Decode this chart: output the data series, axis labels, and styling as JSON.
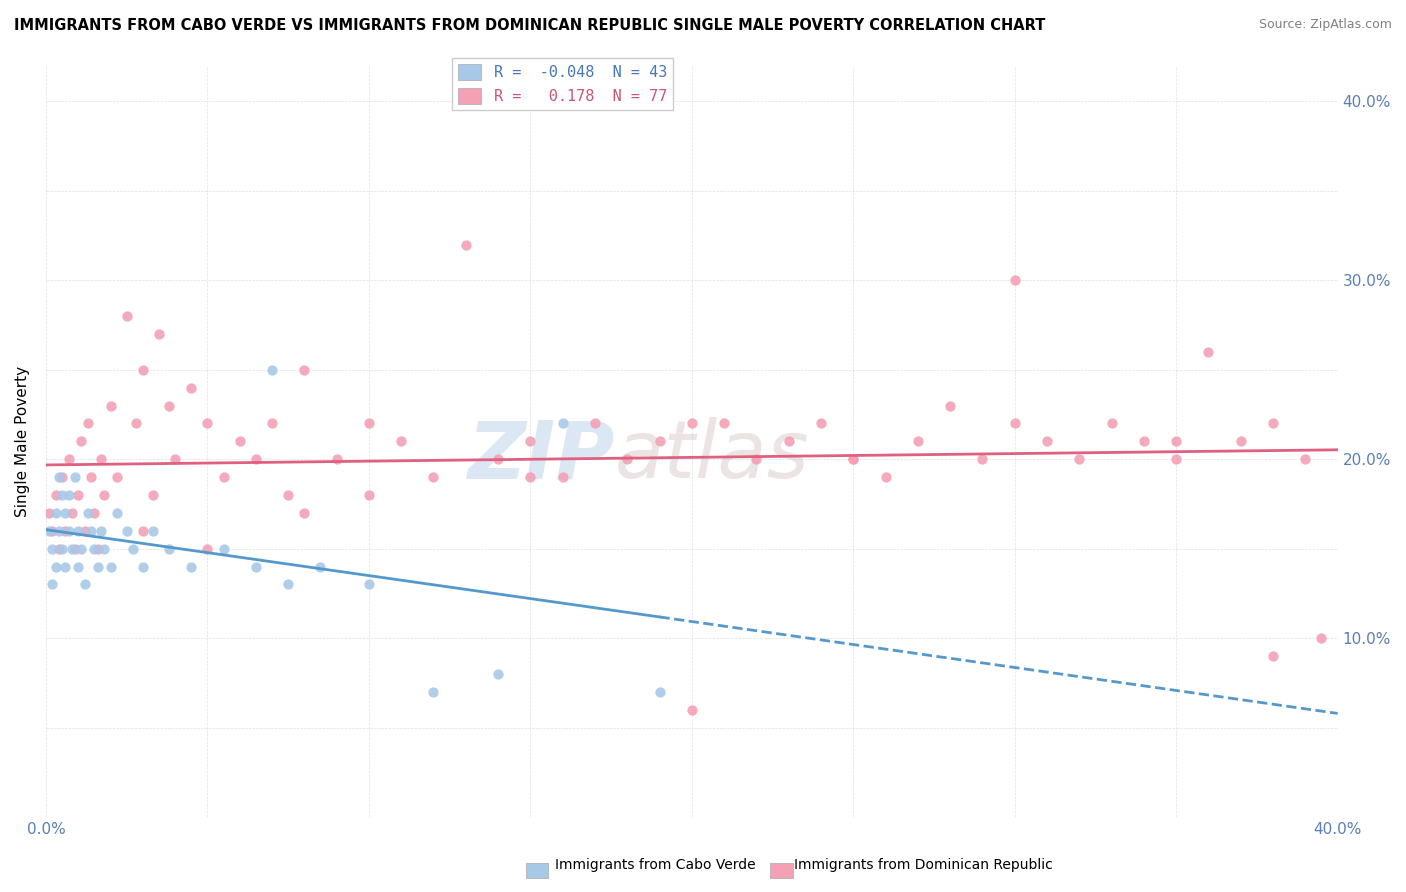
{
  "title": "IMMIGRANTS FROM CABO VERDE VS IMMIGRANTS FROM DOMINICAN REPUBLIC SINGLE MALE POVERTY CORRELATION CHART",
  "source": "Source: ZipAtlas.com",
  "ylabel": "Single Male Poverty",
  "xlim": [
    0.0,
    0.4
  ],
  "ylim": [
    0.0,
    0.42
  ],
  "xtick_positions": [
    0.0,
    0.05,
    0.1,
    0.15,
    0.2,
    0.25,
    0.3,
    0.35,
    0.4
  ],
  "xtick_labels": [
    "0.0%",
    "",
    "",
    "",
    "",
    "",
    "",
    "",
    "40.0%"
  ],
  "ytick_positions": [
    0.0,
    0.05,
    0.1,
    0.15,
    0.2,
    0.25,
    0.3,
    0.35,
    0.4
  ],
  "ytick_labels_right": [
    "",
    "",
    "10.0%",
    "",
    "20.0%",
    "",
    "30.0%",
    "",
    "40.0%"
  ],
  "cabo_verde_R": -0.048,
  "cabo_verde_N": 43,
  "dominican_R": 0.178,
  "dominican_N": 77,
  "cabo_verde_color": "#a8c8e8",
  "dominican_color": "#f4a0b5",
  "cabo_verde_line_color": "#5599cc",
  "dominican_line_color": "#e06080",
  "watermark_zip": "ZIP",
  "watermark_atlas": "atlas",
  "cabo_verde_x": [
    0.001,
    0.002,
    0.002,
    0.003,
    0.003,
    0.004,
    0.004,
    0.005,
    0.005,
    0.006,
    0.006,
    0.007,
    0.007,
    0.008,
    0.009,
    0.01,
    0.01,
    0.011,
    0.012,
    0.013,
    0.014,
    0.015,
    0.016,
    0.017,
    0.018,
    0.02,
    0.022,
    0.025,
    0.027,
    0.03,
    0.033,
    0.038,
    0.045,
    0.055,
    0.065,
    0.075,
    0.085,
    0.1,
    0.12,
    0.14,
    0.07,
    0.16,
    0.19
  ],
  "cabo_verde_y": [
    0.16,
    0.13,
    0.15,
    0.17,
    0.14,
    0.19,
    0.16,
    0.15,
    0.18,
    0.14,
    0.17,
    0.16,
    0.18,
    0.15,
    0.19,
    0.16,
    0.14,
    0.15,
    0.13,
    0.17,
    0.16,
    0.15,
    0.14,
    0.16,
    0.15,
    0.14,
    0.17,
    0.16,
    0.15,
    0.14,
    0.16,
    0.15,
    0.14,
    0.15,
    0.14,
    0.13,
    0.14,
    0.13,
    0.07,
    0.08,
    0.25,
    0.22,
    0.07
  ],
  "dominican_x": [
    0.001,
    0.002,
    0.003,
    0.004,
    0.005,
    0.006,
    0.007,
    0.008,
    0.009,
    0.01,
    0.011,
    0.012,
    0.013,
    0.014,
    0.015,
    0.016,
    0.017,
    0.018,
    0.02,
    0.022,
    0.025,
    0.028,
    0.03,
    0.033,
    0.035,
    0.038,
    0.04,
    0.045,
    0.05,
    0.055,
    0.06,
    0.065,
    0.07,
    0.075,
    0.08,
    0.09,
    0.1,
    0.11,
    0.12,
    0.13,
    0.14,
    0.15,
    0.16,
    0.17,
    0.18,
    0.19,
    0.2,
    0.21,
    0.22,
    0.23,
    0.24,
    0.25,
    0.26,
    0.27,
    0.28,
    0.29,
    0.3,
    0.31,
    0.32,
    0.33,
    0.34,
    0.35,
    0.36,
    0.37,
    0.38,
    0.39,
    0.395,
    0.03,
    0.05,
    0.08,
    0.1,
    0.15,
    0.2,
    0.25,
    0.3,
    0.35,
    0.38
  ],
  "dominican_y": [
    0.17,
    0.16,
    0.18,
    0.15,
    0.19,
    0.16,
    0.2,
    0.17,
    0.15,
    0.18,
    0.21,
    0.16,
    0.22,
    0.19,
    0.17,
    0.15,
    0.2,
    0.18,
    0.23,
    0.19,
    0.28,
    0.22,
    0.25,
    0.18,
    0.27,
    0.23,
    0.2,
    0.24,
    0.22,
    0.19,
    0.21,
    0.2,
    0.22,
    0.18,
    0.25,
    0.2,
    0.22,
    0.21,
    0.19,
    0.32,
    0.2,
    0.21,
    0.19,
    0.22,
    0.2,
    0.21,
    0.06,
    0.22,
    0.2,
    0.21,
    0.22,
    0.2,
    0.19,
    0.21,
    0.23,
    0.2,
    0.3,
    0.21,
    0.2,
    0.22,
    0.21,
    0.2,
    0.26,
    0.21,
    0.22,
    0.2,
    0.1,
    0.16,
    0.15,
    0.17,
    0.18,
    0.19,
    0.22,
    0.2,
    0.22,
    0.21,
    0.09
  ]
}
